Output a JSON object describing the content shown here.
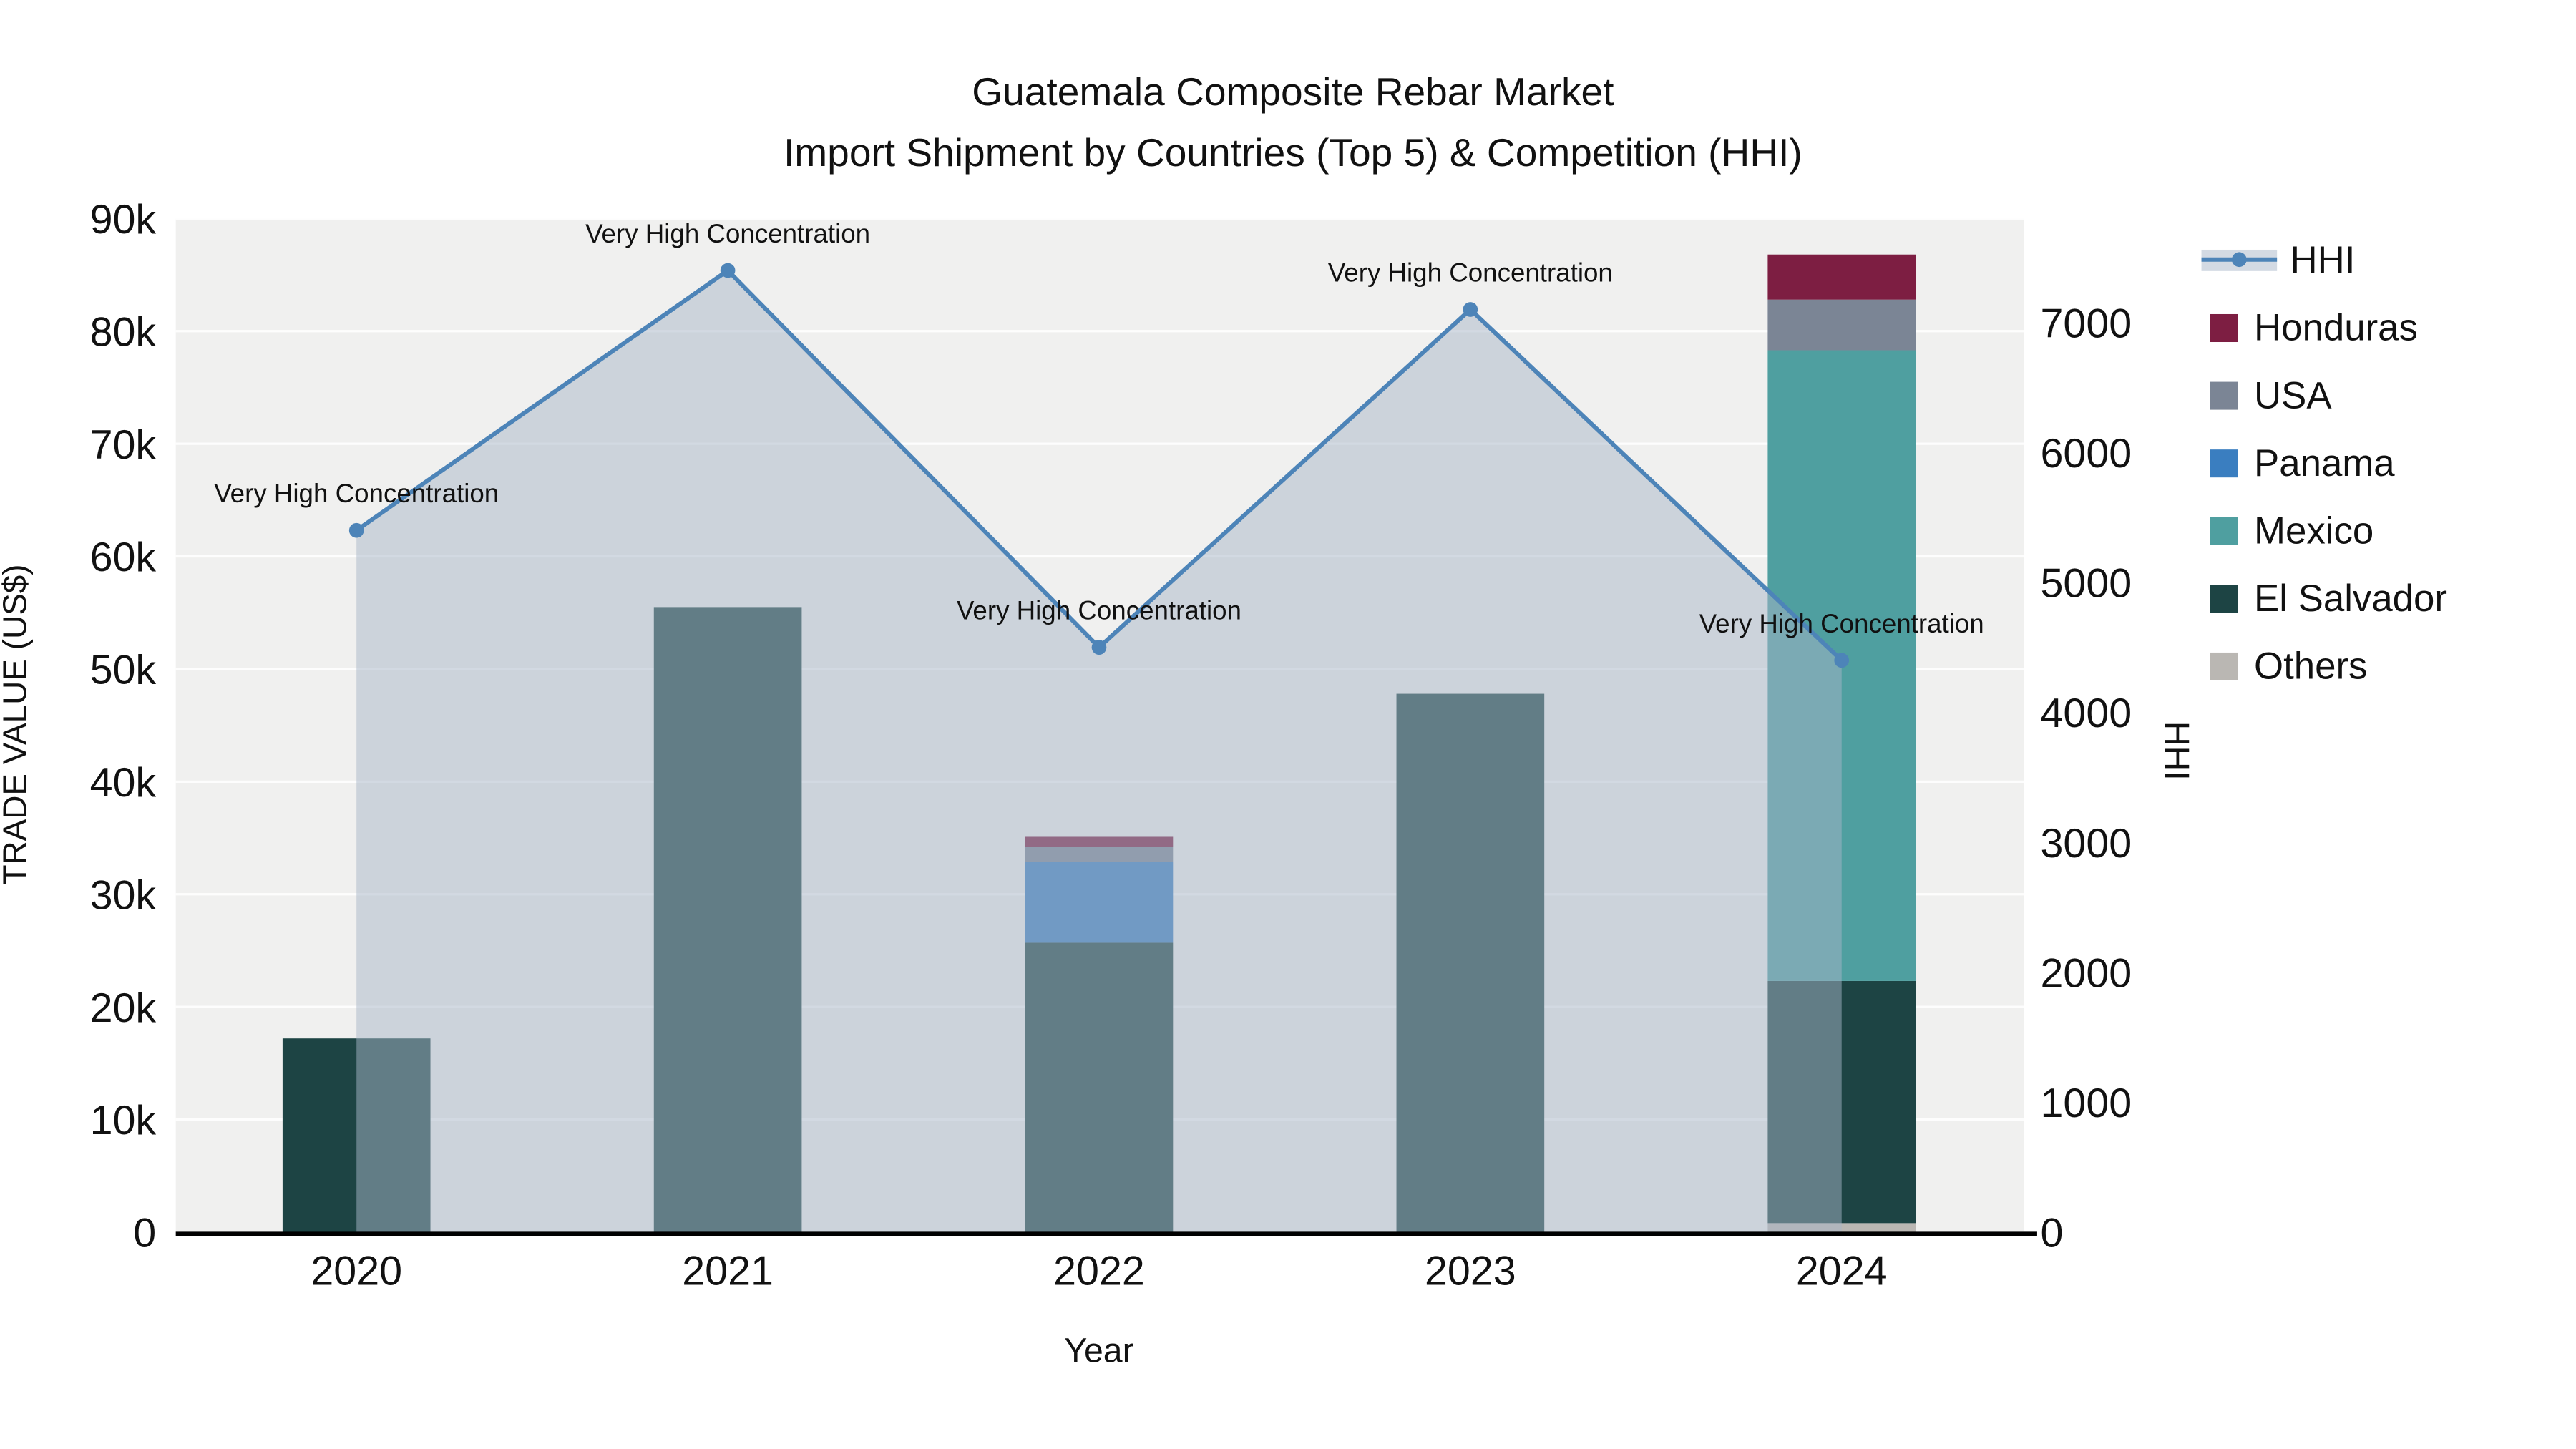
{
  "chart_data": {
    "type": "bar",
    "subtype": "stacked-bar-with-line-overlay",
    "title": "Guatemala Composite Rebar Market",
    "subtitle": "Import Shipment by Countries (Top 5) & Competition (HHI)",
    "xlabel": "Year",
    "categories": [
      "2020",
      "2021",
      "2022",
      "2023",
      "2024"
    ],
    "left_axis": {
      "label": "TRADE VALUE (US$)",
      "max": 90000,
      "ticks": [
        "0",
        "10k",
        "20k",
        "30k",
        "40k",
        "50k",
        "60k",
        "70k",
        "80k",
        "90k"
      ],
      "tick_values": [
        0,
        10000,
        20000,
        30000,
        40000,
        50000,
        60000,
        70000,
        80000,
        90000
      ]
    },
    "right_axis": {
      "label": "HHI",
      "max": 7800,
      "ticks": [
        "0",
        "1000",
        "2000",
        "3000",
        "4000",
        "5000",
        "6000",
        "7000"
      ],
      "tick_values": [
        0,
        1000,
        2000,
        3000,
        4000,
        5000,
        6000,
        7000
      ]
    },
    "bar_series": [
      {
        "name": "Others",
        "color": "#bab7b3",
        "values": [
          0,
          0,
          0,
          0,
          800
        ]
      },
      {
        "name": "El Salvador",
        "color": "#1d4444",
        "values": [
          17200,
          55500,
          25700,
          47800,
          21500
        ]
      },
      {
        "name": "Panama",
        "color": "#3a7ec0",
        "values": [
          0,
          0,
          7200,
          0,
          0
        ]
      },
      {
        "name": "Mexico",
        "color": "#4f9fa0",
        "values": [
          0,
          0,
          0,
          0,
          56000
        ]
      },
      {
        "name": "USA",
        "color": "#7b8595",
        "values": [
          0,
          0,
          1300,
          0,
          4500
        ]
      },
      {
        "name": "Honduras",
        "color": "#7d1e42",
        "values": [
          0,
          0,
          900,
          0,
          4000
        ]
      }
    ],
    "line_series": {
      "name": "HHI",
      "color": "#4d84b8",
      "area_color": "#a7b6c7",
      "area_opacity": 0.5,
      "values": [
        5400,
        7400,
        4500,
        7100,
        4400
      ]
    },
    "annotations": {
      "text": "Very High Concentration"
    },
    "legend": [
      "HHI",
      "Honduras",
      "USA",
      "Panama",
      "Mexico",
      "El Salvador",
      "Others"
    ],
    "colors": {
      "plot_bg": "#f0f0ef",
      "grid": "#ffffff",
      "axis": "#000000",
      "text": "#111111"
    }
  }
}
